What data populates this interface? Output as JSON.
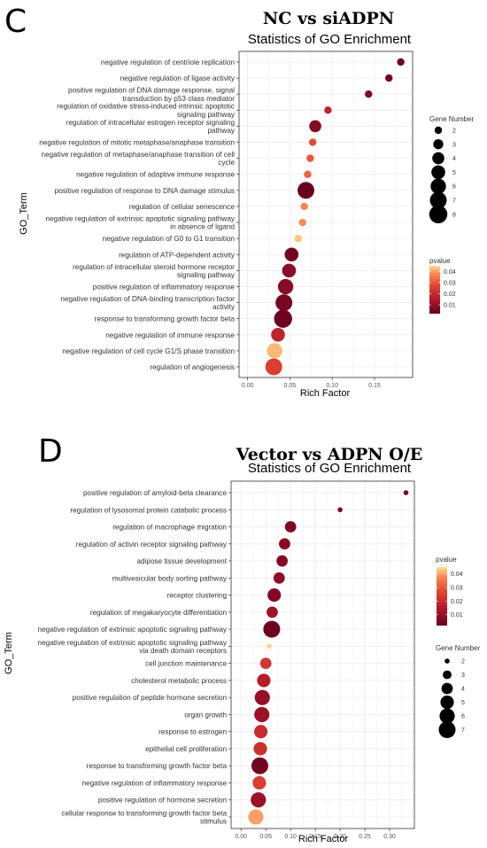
{
  "chart_data": [
    {
      "panel": "C",
      "type": "scatter",
      "title": "NC vs siADPN",
      "subtitle": "Statistics of GO Enrichment",
      "xlabel": "Rich Factor",
      "ylabel": "GO_Term",
      "xlim": [
        -0.01,
        0.195
      ],
      "xticks": [
        0.0,
        0.05,
        0.1,
        0.15
      ],
      "xtick_labels": [
        "0.00",
        "0.05",
        "0.10",
        "0.15"
      ],
      "grid": true,
      "color_legend_title": "pvalue",
      "color_range": [
        0.002,
        0.045
      ],
      "color_ticks": [
        0.01,
        0.02,
        0.03,
        0.04
      ],
      "size_legend_title": "Gene Number",
      "size_legend_values": [
        2,
        3,
        4,
        5,
        6,
        7,
        8
      ],
      "size_range": [
        2,
        8
      ],
      "terms": [
        {
          "label": [
            "negative regulation of centriole replication"
          ],
          "x": 0.181,
          "gene_number": 2,
          "pvalue": 0.003
        },
        {
          "label": [
            "negative regulation of ligase activity"
          ],
          "x": 0.167,
          "gene_number": 2,
          "pvalue": 0.004
        },
        {
          "label": [
            "positive regulation of DNA damage response, signal",
            "transduction by p53 class mediator"
          ],
          "x": 0.143,
          "gene_number": 2,
          "pvalue": 0.006
        },
        {
          "label": [
            "regulation of oxidative stress-induced intrinsic apoptotic",
            "signaling pathway"
          ],
          "x": 0.095,
          "gene_number": 2,
          "pvalue": 0.018
        },
        {
          "label": [
            "regulation of intracellular estrogen receptor signaling",
            "pathway"
          ],
          "x": 0.08,
          "gene_number": 4,
          "pvalue": 0.007
        },
        {
          "label": [
            "negative regulation of mitotic metaphase/anaphase transition"
          ],
          "x": 0.077,
          "gene_number": 2,
          "pvalue": 0.028
        },
        {
          "label": [
            "negative regulation of metaphase/anaphase transition of cell",
            "cycle"
          ],
          "x": 0.074,
          "gene_number": 2,
          "pvalue": 0.03
        },
        {
          "label": [
            "negative regulation of adaptive immune response"
          ],
          "x": 0.071,
          "gene_number": 2,
          "pvalue": 0.032
        },
        {
          "label": [
            "positive regulation of response to DNA damage stimulus"
          ],
          "x": 0.069,
          "gene_number": 7,
          "pvalue": 0.002
        },
        {
          "label": [
            "regulation of cellular senescence"
          ],
          "x": 0.067,
          "gene_number": 2,
          "pvalue": 0.037
        },
        {
          "label": [
            "negative regulation of extrinsic apoptotic signaling pathway",
            "in absence of ligand"
          ],
          "x": 0.065,
          "gene_number": 2,
          "pvalue": 0.038
        },
        {
          "label": [
            "negative regulation of G0 to G1 transition"
          ],
          "x": 0.06,
          "gene_number": 2,
          "pvalue": 0.043
        },
        {
          "label": [
            "regulation of ATP-dependent activity"
          ],
          "x": 0.052,
          "gene_number": 5,
          "pvalue": 0.004
        },
        {
          "label": [
            "regulation of intracellular steroid hormone receptor",
            "signaling pathway"
          ],
          "x": 0.049,
          "gene_number": 5,
          "pvalue": 0.008
        },
        {
          "label": [
            "positive regulation of inflammatory response"
          ],
          "x": 0.045,
          "gene_number": 6,
          "pvalue": 0.008
        },
        {
          "label": [
            "negative regulation of DNA-binding transcription factor",
            "activity"
          ],
          "x": 0.043,
          "gene_number": 7,
          "pvalue": 0.005
        },
        {
          "label": [
            "response to transforming growth factor beta"
          ],
          "x": 0.042,
          "gene_number": 8,
          "pvalue": 0.003
        },
        {
          "label": [
            "negative regulation of immune response"
          ],
          "x": 0.036,
          "gene_number": 5,
          "pvalue": 0.018
        },
        {
          "label": [
            "negative regulation of cell cycle G1/S phase transition"
          ],
          "x": 0.032,
          "gene_number": 6,
          "pvalue": 0.042
        },
        {
          "label": [
            "regulation of angiogenesis"
          ],
          "x": 0.031,
          "gene_number": 7,
          "pvalue": 0.025
        }
      ]
    },
    {
      "panel": "D",
      "type": "scatter",
      "title": "Vector vs ADPN O/E",
      "subtitle": "Statistics of GO Enrichment",
      "xlabel": "Rich Factor",
      "ylabel": "GO_Term",
      "xlim": [
        -0.02,
        0.35
      ],
      "xticks": [
        0.0,
        0.05,
        0.1,
        0.15,
        0.2,
        0.25,
        0.3
      ],
      "xtick_labels": [
        "0.00",
        "0.05",
        "0.10",
        "0.15",
        "0.20",
        "0.25",
        "0.30"
      ],
      "grid": true,
      "color_legend_title": "pvalue",
      "color_range": [
        0.002,
        0.045
      ],
      "color_ticks": [
        0.01,
        0.02,
        0.03,
        0.04
      ],
      "size_legend_title": "Gene Number",
      "size_legend_values": [
        2,
        3,
        4,
        5,
        6,
        7
      ],
      "size_range": [
        2,
        7
      ],
      "terms": [
        {
          "label": [
            "positive regulation of amyloid-beta clearance"
          ],
          "x": 0.333,
          "gene_number": 2,
          "pvalue": 0.004
        },
        {
          "label": [
            "regulation of lysosomal protein catabolic process"
          ],
          "x": 0.2,
          "gene_number": 2,
          "pvalue": 0.006
        },
        {
          "label": [
            "regulation of macrophage migration"
          ],
          "x": 0.1,
          "gene_number": 4,
          "pvalue": 0.006
        },
        {
          "label": [
            "regulation of activin receptor signaling pathway"
          ],
          "x": 0.088,
          "gene_number": 4,
          "pvalue": 0.008
        },
        {
          "label": [
            "adipose tissue development"
          ],
          "x": 0.083,
          "gene_number": 4,
          "pvalue": 0.007
        },
        {
          "label": [
            "multivesicular body sorting pathway"
          ],
          "x": 0.077,
          "gene_number": 4,
          "pvalue": 0.009
        },
        {
          "label": [
            "receptor clustering"
          ],
          "x": 0.067,
          "gene_number": 5,
          "pvalue": 0.007
        },
        {
          "label": [
            "regulation of megakaryocyte differentiation"
          ],
          "x": 0.063,
          "gene_number": 4,
          "pvalue": 0.012
        },
        {
          "label": [
            "negative regulation of extrinsic apoptotic signaling pathway"
          ],
          "x": 0.062,
          "gene_number": 7,
          "pvalue": 0.003
        },
        {
          "label": [
            "negative regulation of extrinsic apoptotic signaling pathway",
            "via death domain receptors"
          ],
          "x": 0.057,
          "gene_number": 2,
          "pvalue": 0.044
        },
        {
          "label": [
            "cell junction maintenance"
          ],
          "x": 0.05,
          "gene_number": 4,
          "pvalue": 0.023
        },
        {
          "label": [
            "cholesterol metabolic process"
          ],
          "x": 0.046,
          "gene_number": 5,
          "pvalue": 0.016
        },
        {
          "label": [
            "positive regulation of peptide hormone secretion"
          ],
          "x": 0.043,
          "gene_number": 6,
          "pvalue": 0.01
        },
        {
          "label": [
            "organ growth"
          ],
          "x": 0.042,
          "gene_number": 6,
          "pvalue": 0.011
        },
        {
          "label": [
            "response to estrogen"
          ],
          "x": 0.04,
          "gene_number": 5,
          "pvalue": 0.02
        },
        {
          "label": [
            "epithelial cell proliferation"
          ],
          "x": 0.039,
          "gene_number": 5,
          "pvalue": 0.021
        },
        {
          "label": [
            "response to transforming growth factor beta"
          ],
          "x": 0.038,
          "gene_number": 7,
          "pvalue": 0.004
        },
        {
          "label": [
            "negative regulation of inflammatory response"
          ],
          "x": 0.037,
          "gene_number": 5,
          "pvalue": 0.025
        },
        {
          "label": [
            "positive regulation of hormone secretion"
          ],
          "x": 0.035,
          "gene_number": 6,
          "pvalue": 0.011
        },
        {
          "label": [
            "cellular response to transforming growth factor beta",
            "stimulus"
          ],
          "x": 0.03,
          "gene_number": 6,
          "pvalue": 0.04
        }
      ]
    }
  ]
}
